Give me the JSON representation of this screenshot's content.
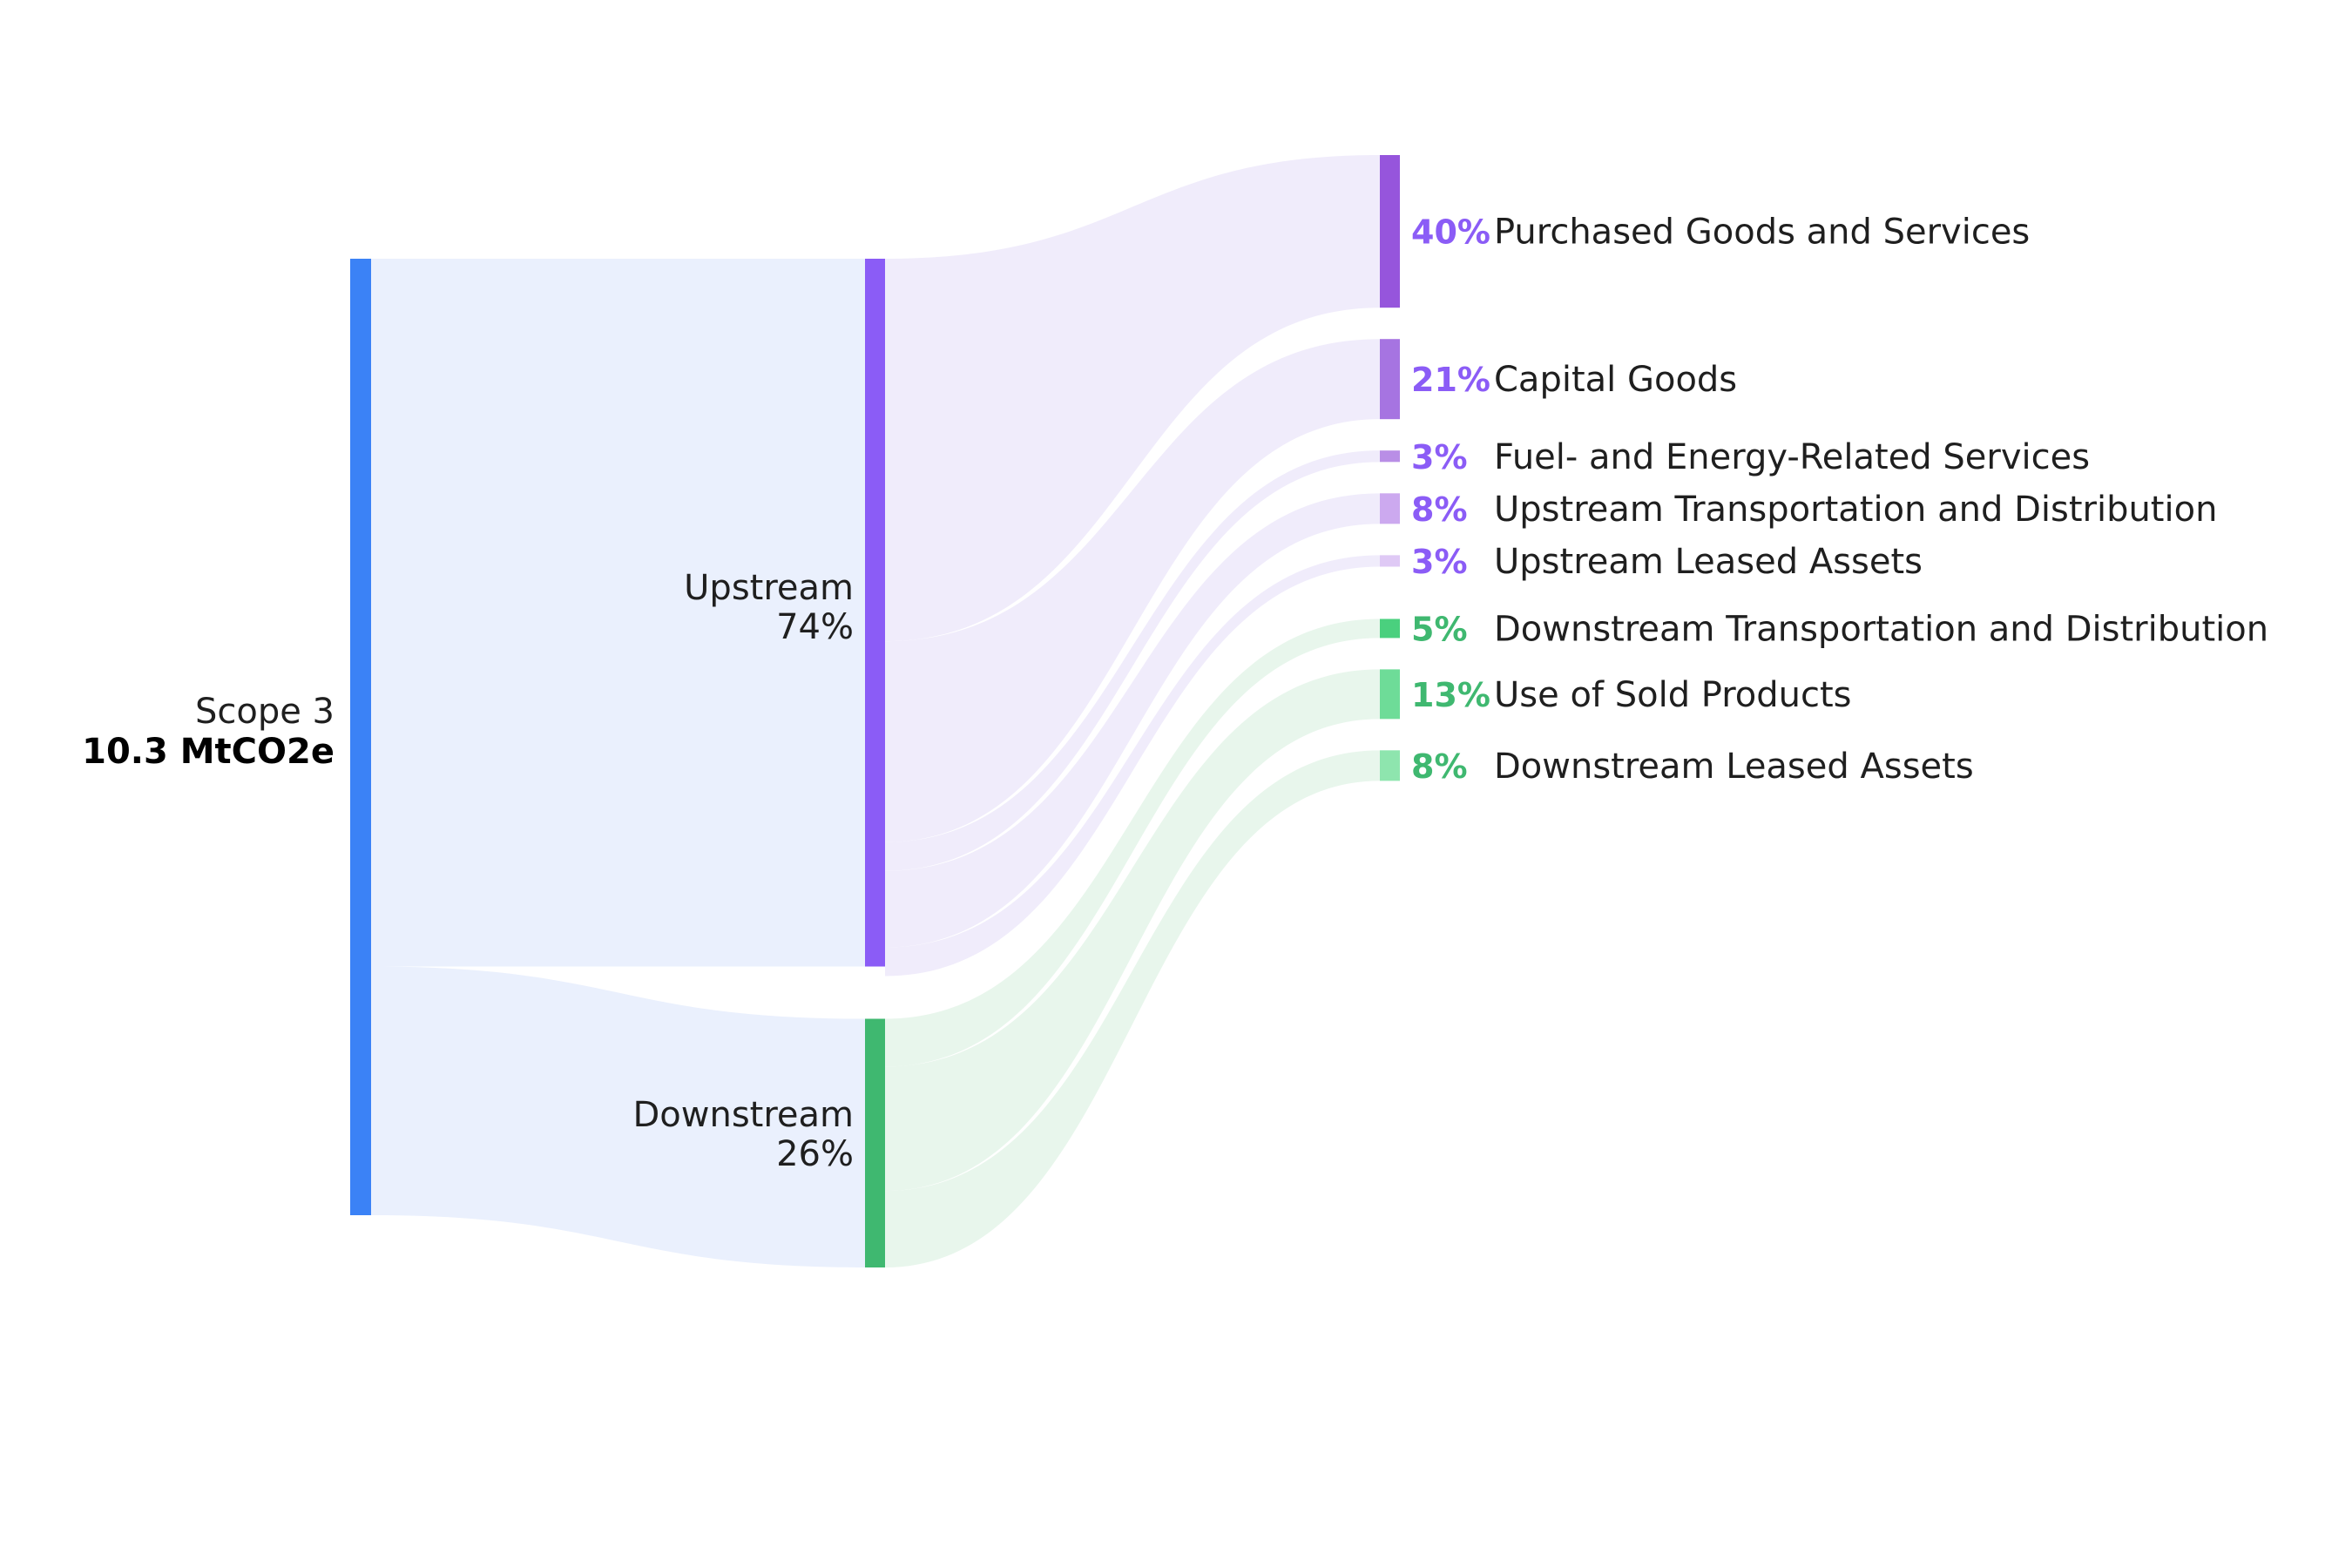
{
  "chart_data": {
    "type": "sankey",
    "title": "",
    "unit": "MtCO2e",
    "colors": {
      "root": "#3b82f6",
      "root_link": "#eaf0fd",
      "upstream": "#8b5cf6",
      "upstream_link": "#f0ecfb",
      "upstream_pct": "#8b5cf6",
      "downstream": "#3fb870",
      "downstream_link": "#e8f6ec",
      "downstream_pct": "#3fb870"
    },
    "root": {
      "name": "Scope 3",
      "value_label": "10.3 MtCO2e",
      "value": 10.3
    },
    "groups": [
      {
        "name": "Upstream",
        "pct_label": "74%",
        "share": 74
      },
      {
        "name": "Downstream",
        "pct_label": "26%",
        "share": 26
      }
    ],
    "categories": [
      {
        "group": "Upstream",
        "name": "Purchased Goods and Services",
        "pct_label": "40%",
        "share": 40,
        "color": "#9655dc"
      },
      {
        "group": "Upstream",
        "name": "Capital Goods",
        "pct_label": "21%",
        "share": 21,
        "color": "#a674e1"
      },
      {
        "group": "Upstream",
        "name": "Fuel- and Energy-Related Services",
        "pct_label": "3%",
        "share": 3,
        "color": "#b98ee6"
      },
      {
        "group": "Upstream",
        "name": "Upstream Transportation and Distribution",
        "pct_label": "8%",
        "share": 8,
        "color": "#cca9ef"
      },
      {
        "group": "Upstream",
        "name": "Upstream Leased Assets",
        "pct_label": "3%",
        "share": 3,
        "color": "#dfc9f5"
      },
      {
        "group": "Downstream",
        "name": "Downstream Transportation and Distribution",
        "pct_label": "5%",
        "share": 5,
        "color": "#4ad07e"
      },
      {
        "group": "Downstream",
        "name": "Use of Sold Products",
        "pct_label": "13%",
        "share": 13,
        "color": "#6edc98"
      },
      {
        "group": "Downstream",
        "name": "Downstream Leased Assets",
        "pct_label": "8%",
        "share": 8,
        "color": "#8ee5ae"
      }
    ]
  }
}
